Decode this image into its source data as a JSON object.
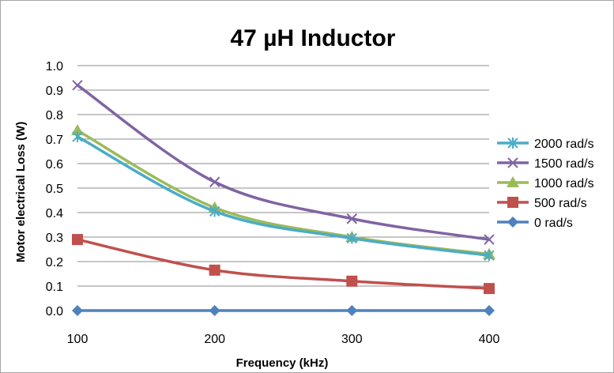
{
  "chart_data": {
    "type": "line",
    "title": "47 µH Inductor",
    "xlabel": "Frequency (kHz)",
    "ylabel": "Motor electrical Loss (W)",
    "x": [
      100,
      200,
      300,
      400
    ],
    "x_ticks": [
      "100",
      "200",
      "300",
      "400"
    ],
    "y_ticks": [
      "0.0",
      "0.1",
      "0.2",
      "0.3",
      "0.4",
      "0.5",
      "0.6",
      "0.7",
      "0.8",
      "0.9",
      "1.0"
    ],
    "ylim": [
      0,
      1.0
    ],
    "grid": true,
    "legend_position": "right",
    "series": [
      {
        "name": "2000 rad/s",
        "color": "#4bacc6",
        "marker": "star",
        "values": [
          0.71,
          0.405,
          0.295,
          0.225
        ]
      },
      {
        "name": "1500 rad/s",
        "color": "#8064a2",
        "marker": "x",
        "values": [
          0.92,
          0.525,
          0.375,
          0.29
        ]
      },
      {
        "name": "1000 rad/s",
        "color": "#9bbb59",
        "marker": "triangle",
        "values": [
          0.735,
          0.42,
          0.3,
          0.23
        ]
      },
      {
        "name": "500 rad/s",
        "color": "#c0504d",
        "marker": "square",
        "values": [
          0.29,
          0.165,
          0.12,
          0.09
        ]
      },
      {
        "name": "0 rad/s",
        "color": "#4f81bd",
        "marker": "diamond",
        "values": [
          0.0,
          0.0,
          0.0,
          0.0
        ]
      }
    ]
  }
}
